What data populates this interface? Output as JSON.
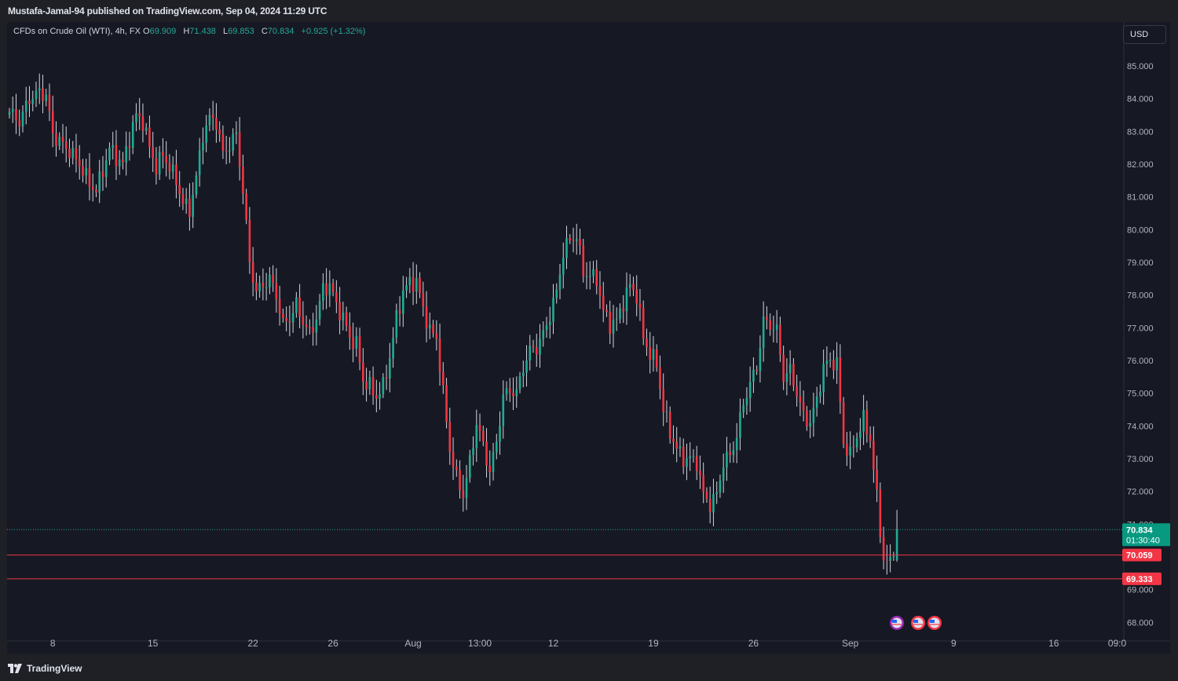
{
  "header": {
    "published_text": "Mustafa-Jamal-94 published on TradingView.com, Sep 04, 2024 11:29 UTC"
  },
  "legend": {
    "symbol": "CFDs on Crude Oil (WTI), 4h, FX",
    "o_label": "O",
    "o_value": "69.909",
    "h_label": "H",
    "h_value": "71.438",
    "l_label": "L",
    "l_value": "69.853",
    "c_label": "C",
    "c_value": "70.834",
    "change": "+0.925 (+1.32%)"
  },
  "currency_button": "USD",
  "footer": {
    "brand": "TradingView"
  },
  "colors": {
    "up": "#26a69a",
    "up_bar": "#22ab94",
    "down": "#f23645",
    "background": "#161923",
    "axis_text": "#b2b5be",
    "support_line": "#f23645",
    "price_line": "#26a69a"
  },
  "chart_data": {
    "type": "candlestick",
    "title": "CFDs on Crude Oil (WTI), 4h, FX",
    "xlabel": "",
    "ylabel": "",
    "currency": "USD",
    "y_ticks": [
      "85.000",
      "84.000",
      "83.000",
      "82.000",
      "81.000",
      "80.000",
      "79.000",
      "78.000",
      "77.000",
      "76.000",
      "75.000",
      "74.000",
      "73.000",
      "72.000",
      "71.000",
      "69.000",
      "68.000"
    ],
    "ylim": [
      67.5,
      86.3
    ],
    "x_ticks": [
      "8",
      "15",
      "22",
      "26",
      "Aug",
      "13:00",
      "12",
      "19",
      "26",
      "Sep",
      "9",
      "16",
      "09:0"
    ],
    "xlim": [
      0,
      330
    ],
    "x_tick_positions": [
      13,
      43,
      73,
      97,
      121,
      141,
      163,
      193,
      223,
      252,
      283,
      313,
      332
    ],
    "grid": false,
    "close_path": [
      [
        0,
        83.6
      ],
      [
        3,
        83.3
      ],
      [
        6,
        84.0
      ],
      [
        9,
        84.2
      ],
      [
        11,
        84.1
      ],
      [
        13,
        82.9
      ],
      [
        15,
        82.7
      ],
      [
        18,
        82.4
      ],
      [
        21,
        82.0
      ],
      [
        24,
        81.4
      ],
      [
        26,
        81.2
      ],
      [
        28,
        81.8
      ],
      [
        30,
        82.5
      ],
      [
        32,
        82.2
      ],
      [
        34,
        82.0
      ],
      [
        36,
        82.8
      ],
      [
        38,
        83.5
      ],
      [
        40,
        83.3
      ],
      [
        42,
        82.5
      ],
      [
        44,
        81.9
      ],
      [
        46,
        82.3
      ],
      [
        48,
        81.9
      ],
      [
        50,
        81.5
      ],
      [
        52,
        80.8
      ],
      [
        54,
        80.6
      ],
      [
        56,
        81.6
      ],
      [
        58,
        82.9
      ],
      [
        60,
        83.4
      ],
      [
        62,
        83.3
      ],
      [
        64,
        82.3
      ],
      [
        66,
        82.6
      ],
      [
        68,
        82.9
      ],
      [
        70,
        81.2
      ],
      [
        72,
        79.0
      ],
      [
        74,
        78.1
      ],
      [
        76,
        78.3
      ],
      [
        78,
        78.5
      ],
      [
        80,
        78.0
      ],
      [
        82,
        77.1
      ],
      [
        84,
        77.3
      ],
      [
        86,
        77.7
      ],
      [
        88,
        77.2
      ],
      [
        90,
        76.8
      ],
      [
        92,
        77.3
      ],
      [
        94,
        78.2
      ],
      [
        96,
        78.3
      ],
      [
        98,
        77.7
      ],
      [
        100,
        77.3
      ],
      [
        102,
        76.7
      ],
      [
        104,
        76.5
      ],
      [
        106,
        75.4
      ],
      [
        108,
        75.2
      ],
      [
        110,
        74.9
      ],
      [
        112,
        75.2
      ],
      [
        114,
        76.1
      ],
      [
        116,
        77.3
      ],
      [
        118,
        78.1
      ],
      [
        120,
        78.4
      ],
      [
        122,
        78.4
      ],
      [
        124,
        77.6
      ],
      [
        126,
        76.9
      ],
      [
        128,
        76.7
      ],
      [
        130,
        75.0
      ],
      [
        132,
        73.3
      ],
      [
        134,
        72.4
      ],
      [
        136,
        71.9
      ],
      [
        138,
        72.9
      ],
      [
        140,
        74.1
      ],
      [
        142,
        73.4
      ],
      [
        144,
        72.6
      ],
      [
        146,
        73.5
      ],
      [
        148,
        74.9
      ],
      [
        150,
        75.1
      ],
      [
        152,
        75.0
      ],
      [
        154,
        75.8
      ],
      [
        156,
        76.3
      ],
      [
        158,
        76.4
      ],
      [
        160,
        76.8
      ],
      [
        162,
        77.4
      ],
      [
        164,
        78.1
      ],
      [
        166,
        79.3
      ],
      [
        168,
        79.7
      ],
      [
        170,
        79.8
      ],
      [
        172,
        78.7
      ],
      [
        174,
        78.6
      ],
      [
        176,
        78.5
      ],
      [
        178,
        77.5
      ],
      [
        180,
        77.1
      ],
      [
        182,
        77.2
      ],
      [
        184,
        77.8
      ],
      [
        186,
        78.3
      ],
      [
        188,
        78.0
      ],
      [
        190,
        76.7
      ],
      [
        192,
        76.2
      ],
      [
        194,
        75.9
      ],
      [
        196,
        74.5
      ],
      [
        198,
        73.8
      ],
      [
        200,
        73.3
      ],
      [
        202,
        73.0
      ],
      [
        204,
        73.0
      ],
      [
        206,
        72.9
      ],
      [
        208,
        71.9
      ],
      [
        210,
        71.6
      ],
      [
        212,
        71.9
      ],
      [
        214,
        72.9
      ],
      [
        216,
        73.1
      ],
      [
        218,
        73.7
      ],
      [
        220,
        74.7
      ],
      [
        222,
        75.3
      ],
      [
        224,
        75.8
      ],
      [
        226,
        77.2
      ],
      [
        228,
        77.1
      ],
      [
        230,
        76.9
      ],
      [
        232,
        75.5
      ],
      [
        234,
        75.7
      ],
      [
        236,
        75.0
      ],
      [
        238,
        74.3
      ],
      [
        240,
        74.1
      ],
      [
        242,
        74.8
      ],
      [
        244,
        75.8
      ],
      [
        246,
        76.0
      ],
      [
        248,
        75.9
      ],
      [
        250,
        73.5
      ],
      [
        252,
        73.1
      ],
      [
        254,
        73.7
      ],
      [
        256,
        74.2
      ],
      [
        258,
        73.6
      ],
      [
        260,
        71.8
      ],
      [
        262,
        69.9
      ],
      [
        264,
        69.8
      ],
      [
        266,
        70.834
      ]
    ],
    "support_lines": [
      70.059,
      69.333
    ],
    "last_price": "70.834",
    "countdown": "01:30:40",
    "level_labels": [
      "70.059",
      "69.333"
    ]
  }
}
